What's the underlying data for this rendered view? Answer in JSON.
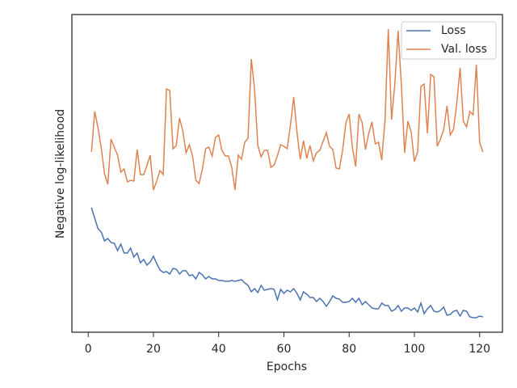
{
  "chart_data": {
    "type": "line",
    "xlabel": "Epochs",
    "ylabel": "Negative log-likelihood",
    "x": [
      1,
      2,
      3,
      4,
      5,
      6,
      7,
      8,
      9,
      10,
      11,
      12,
      13,
      14,
      15,
      16,
      17,
      18,
      19,
      20,
      21,
      22,
      23,
      24,
      25,
      26,
      27,
      28,
      29,
      30,
      31,
      32,
      33,
      34,
      35,
      36,
      37,
      38,
      39,
      40,
      41,
      42,
      43,
      44,
      45,
      46,
      47,
      48,
      49,
      50,
      51,
      52,
      53,
      54,
      55,
      56,
      57,
      58,
      59,
      60,
      61,
      62,
      63,
      64,
      65,
      66,
      67,
      68,
      69,
      70,
      71,
      72,
      73,
      74,
      75,
      76,
      77,
      78,
      79,
      80,
      81,
      82,
      83,
      84,
      85,
      86,
      87,
      88,
      89,
      90,
      91,
      92,
      93,
      94,
      95,
      96,
      97,
      98,
      99,
      100,
      101,
      102,
      103,
      104,
      105,
      106,
      107,
      108,
      109,
      110,
      111,
      112,
      113,
      114,
      115,
      116,
      117,
      118,
      119,
      120,
      121
    ],
    "series": [
      {
        "name": "Loss",
        "color": "#4c72b0",
        "values": [
          154,
          141,
          128,
          124,
          113,
          116,
          111,
          110,
          101,
          109,
          98,
          98,
          104,
          93,
          98,
          86,
          90,
          83,
          87,
          94,
          85,
          77,
          74,
          75,
          72,
          79,
          78,
          72,
          76,
          76,
          70,
          71,
          66,
          74,
          71,
          66,
          69,
          66,
          66,
          64,
          64,
          63,
          63,
          64,
          63,
          64,
          65,
          61,
          58,
          50,
          54,
          49,
          58,
          52,
          53,
          54,
          53,
          40,
          53,
          48,
          52,
          50,
          54,
          48,
          40,
          50,
          47,
          43,
          43,
          38,
          42,
          38,
          32,
          38,
          45,
          42,
          41,
          37,
          37,
          38,
          42,
          37,
          42,
          34,
          38,
          34,
          30,
          29,
          29,
          36,
          33,
          33,
          26,
          28,
          33,
          26,
          30,
          30,
          27,
          30,
          25,
          36,
          23,
          29,
          33,
          26,
          25,
          27,
          31,
          21,
          22,
          26,
          27,
          20,
          27,
          26,
          19,
          18,
          18,
          20,
          19
        ]
      },
      {
        "name": "Val. loss",
        "color": "#dd8452",
        "values": [
          223,
          273,
          253,
          228,
          196,
          183,
          239,
          229,
          219,
          198,
          202,
          186,
          188,
          187,
          226,
          195,
          195,
          206,
          219,
          176,
          187,
          200,
          195,
          301,
          299,
          227,
          231,
          265,
          249,
          222,
          232,
          218,
          188,
          184,
          202,
          227,
          229,
          218,
          241,
          244,
          225,
          218,
          218,
          204,
          176,
          219,
          214,
          235,
          240,
          338,
          301,
          231,
          217,
          225,
          225,
          204,
          207,
          218,
          232,
          230,
          227,
          256,
          291,
          248,
          214,
          237,
          215,
          231,
          212,
          222,
          225,
          236,
          247,
          230,
          226,
          203,
          202,
          225,
          259,
          270,
          228,
          205,
          270,
          259,
          226,
          246,
          260,
          233,
          235,
          213,
          263,
          375,
          263,
          307,
          373,
          307,
          222,
          261,
          248,
          211,
          223,
          304,
          307,
          246,
          319,
          316,
          230,
          239,
          251,
          280,
          244,
          251,
          283,
          327,
          261,
          254,
          273,
          269,
          331,
          235,
          223
        ]
      }
    ],
    "xlim": [
      -5,
      127
    ],
    "xticks": [
      0,
      20,
      40,
      60,
      80,
      100,
      120
    ],
    "ylim": [
      0,
      393
    ],
    "legend": "upper right"
  }
}
